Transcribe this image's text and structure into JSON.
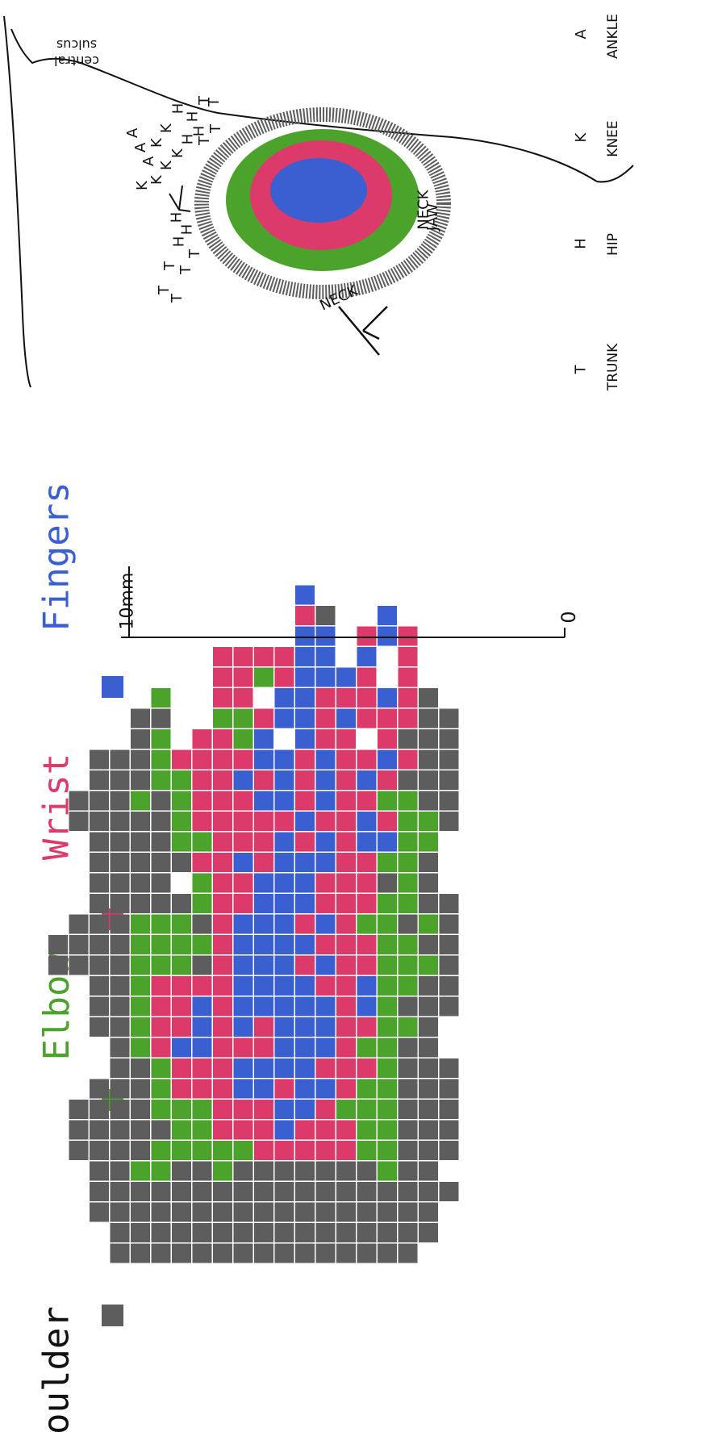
{
  "legend": {
    "items": [
      {
        "key": "shoulder",
        "label": "Shoulder",
        "color": "#5d5d5d"
      },
      {
        "key": "elbow",
        "label": "Elbow",
        "color": "#4ba32c"
      },
      {
        "key": "wrist",
        "label": "Wrist",
        "color": "#dc3a6a"
      },
      {
        "key": "fingers",
        "label": "Fingers",
        "color": "#3a5fd1"
      }
    ]
  },
  "scale_bar": {
    "top_label": "10mm",
    "bottom_label": "0"
  },
  "brain_map": {
    "sulcus_label_line1": "central",
    "sulcus_label_line2": "sulcus",
    "area_labels": {
      "neck_lower": "NECK",
      "neck_upper": "NECK",
      "jaw": "JAW"
    }
  },
  "body_key": [
    {
      "letter": "T",
      "name": "TRUNK"
    },
    {
      "letter": "H",
      "name": "HIP"
    },
    {
      "letter": "K",
      "name": "KNEE"
    },
    {
      "letter": "A",
      "name": "ANKLE"
    }
  ],
  "grid_map": {
    "cols": 20,
    "rows": 34,
    "legend_code": "0 = empty, 1 = Shoulder, 2 = Elbow, 3 = Wrist, 4 = Fingers",
    "cells": [
      "00000000000000000000",
      "00000000000040000000",
      "00000000000031004000",
      "00000000000044034300",
      "00000000333344040300",
      "00000000332344430300",
      "00000200330443334310",
      "00001100223443433311",
      "00001203324043303111",
      "00111233334434334311",
      "00111223343434343111",
      "01112123334434332211",
      "01111123333343343221",
      "00111122333434344220",
      "00111113343444332210",
      "00111102334443331210",
      "00111112334443332211",
      "01112221344434322121",
      "11112222344443332211",
      "11112221344434332221",
      "00112333344443342211",
      "00112334344444342111",
      "00112334343444332210",
      "00012344333444322110",
      "00011233344443332111",
      "00111233344344322111",
      "01111222333443222111",
      "01111122333433322111",
      "01111222223333322111",
      "00112211211111112110",
      "00111111111111111111",
      "00111111111111111110",
      "00011111111111111110",
      "00011111111111111100"
    ]
  }
}
